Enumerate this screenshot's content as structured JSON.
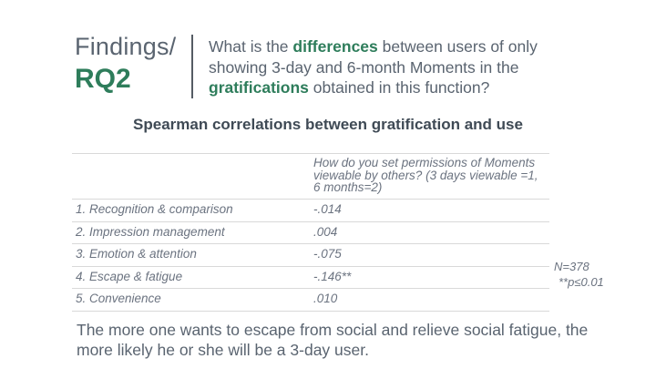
{
  "title": {
    "line1": "Findings/",
    "line2": "RQ2"
  },
  "question": {
    "part1": "What is the ",
    "highlight1": "differences",
    "part2": " between users of only showing 3-day and 6-month Moments in the ",
    "highlight2": "gratifications",
    "part3": " obtained in this function?"
  },
  "subtitle": "Spearman correlations between gratification and use",
  "table": {
    "header": [
      "",
      "How do you set permissions of Moments viewable by others? (3 days viewable =1, 6 months=2)"
    ],
    "rows": [
      [
        "1. Recognition & comparison",
        "-.014"
      ],
      [
        "2. Impression management",
        ".004"
      ],
      [
        "3. Emotion & attention",
        "-.075"
      ],
      [
        "4. Escape & fatigue",
        "-.146**"
      ],
      [
        "5. Convenience",
        ".010"
      ]
    ]
  },
  "notes": {
    "n": "N=378",
    "p": "**p≤0.01"
  },
  "conclusion": "The more one wants to escape from social and relieve social fatigue, the more likely he or she will be a 3-day user.",
  "colors": {
    "accent": "#2e7d5b",
    "text": "#5a6470",
    "table_text": "#6b7380",
    "rule": "#d9d9d9"
  }
}
